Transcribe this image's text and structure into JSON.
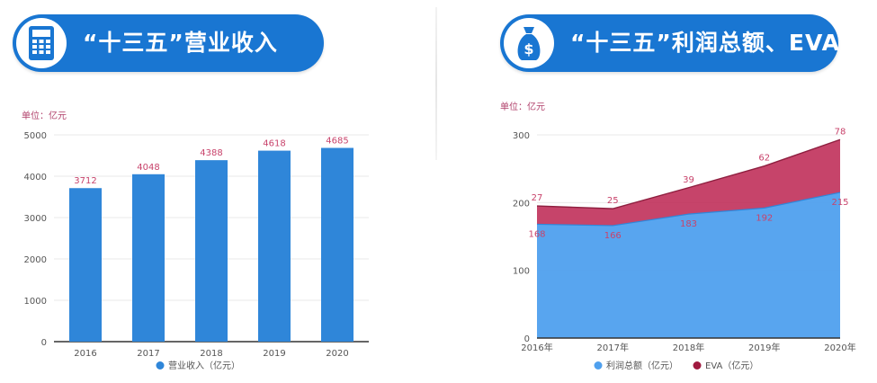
{
  "left": {
    "banner_title": "“十三五”营业收入",
    "icon": "calculator-icon",
    "unit": "单位：亿元"
  },
  "right": {
    "banner_title": "“十三五”利润总额、EVA",
    "icon": "money-bag-icon",
    "unit": "单位：亿元"
  },
  "colors": {
    "banner": "#1976d2",
    "bar": "#2f86d9",
    "area_profit": "#4fa0ee",
    "area_eva": "#c0305a",
    "data_label": "#c8436b"
  },
  "chart_data": [
    {
      "type": "bar",
      "categories": [
        "2016",
        "2017",
        "2018",
        "2019",
        "2020"
      ],
      "series": [
        {
          "name": "营业收入（亿元）",
          "values": [
            3712,
            4048,
            4388,
            4618,
            4685
          ]
        }
      ],
      "ylim": [
        0,
        5000
      ],
      "yticks": [
        0,
        1000,
        2000,
        3000,
        4000,
        5000
      ],
      "grid": true,
      "legend": "bottom",
      "data_labels": true
    },
    {
      "type": "area",
      "stacked": true,
      "categories": [
        "2016年",
        "2017年",
        "2018年",
        "2019年",
        "2020年"
      ],
      "series": [
        {
          "name": "利润总额（亿元）",
          "values": [
            168,
            166,
            183,
            192,
            215
          ]
        },
        {
          "name": "EVA（亿元）",
          "values": [
            27,
            25,
            39,
            62,
            78
          ]
        }
      ],
      "ylim": [
        0,
        300
      ],
      "yticks": [
        0,
        100,
        200,
        300
      ],
      "grid": true,
      "legend": "bottom",
      "data_labels": true
    }
  ]
}
